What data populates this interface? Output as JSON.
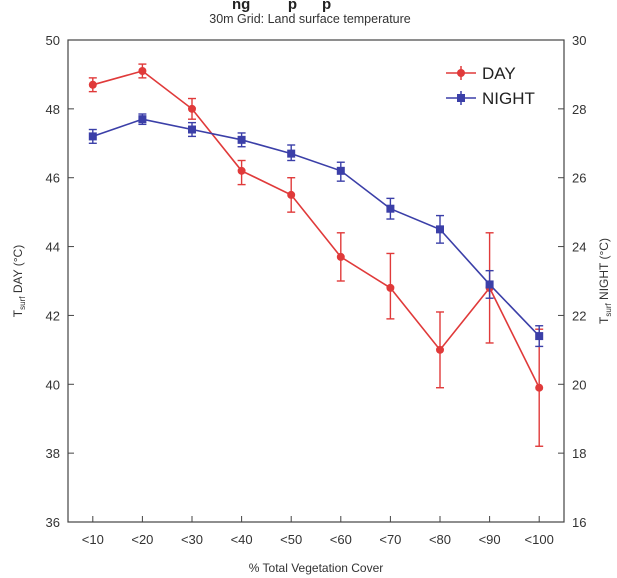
{
  "header_fragment": "ng         p      p",
  "chart_data": {
    "type": "line",
    "title": "30m Grid: Land surface temperature",
    "xlabel": "% Total Vegetation Cover",
    "ylabel_left": {
      "main": "T",
      "sub": "surf",
      "rest": " DAY (°C)"
    },
    "ylabel_right": {
      "main": "T",
      "sub": "surf",
      "rest": " NIGHT (°C)"
    },
    "categories": [
      "<10",
      "<20",
      "<30",
      "<40",
      "<50",
      "<60",
      "<70",
      "<80",
      "<90",
      "<100"
    ],
    "ylim_left": [
      36,
      50
    ],
    "yticks_left": [
      "36",
      "38",
      "40",
      "42",
      "44",
      "46",
      "48",
      "50"
    ],
    "ylim_right": [
      16,
      30
    ],
    "yticks_right": [
      "16",
      "18",
      "20",
      "22",
      "24",
      "26",
      "28",
      "30"
    ],
    "legend_position": "top-right",
    "grid": false,
    "series": [
      {
        "name": "DAY",
        "axis": "left",
        "color": "#e03a3a",
        "marker": "circle",
        "values": [
          48.7,
          49.1,
          48.0,
          46.2,
          45.5,
          43.7,
          42.8,
          41.0,
          42.8,
          39.9
        ],
        "err_low": [
          48.5,
          48.9,
          47.7,
          45.8,
          45.0,
          43.0,
          41.9,
          39.9,
          41.2,
          38.2
        ],
        "err_high": [
          48.9,
          49.3,
          48.3,
          46.5,
          46.0,
          44.4,
          43.8,
          42.1,
          44.4,
          41.6
        ]
      },
      {
        "name": "NIGHT",
        "axis": "right",
        "color": "#3b3fa8",
        "marker": "square",
        "values": [
          27.2,
          27.7,
          27.4,
          27.1,
          26.7,
          26.2,
          25.1,
          24.5,
          22.9,
          21.4
        ],
        "err_low": [
          27.0,
          27.55,
          27.2,
          26.9,
          26.5,
          25.9,
          24.8,
          24.1,
          22.5,
          21.1
        ],
        "err_high": [
          27.4,
          27.85,
          27.6,
          27.3,
          26.95,
          26.45,
          25.4,
          24.9,
          23.3,
          21.7
        ]
      }
    ]
  }
}
